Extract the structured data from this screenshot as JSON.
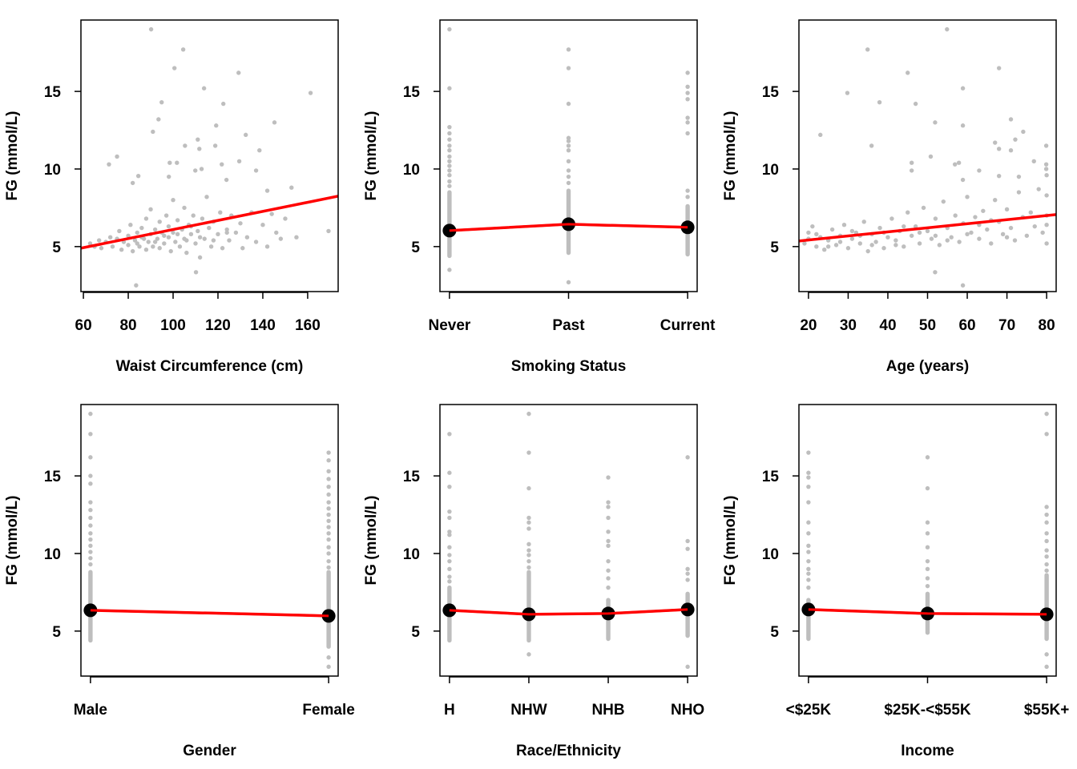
{
  "colors": {
    "points": "#bebebe",
    "fit_line": "#ff0000",
    "means": "#000000",
    "frame": "#000000"
  },
  "chart_data": [
    {
      "type": "scatter",
      "xlabel": "Waist Circumference (cm)",
      "ylabel": "FG (mmol/L)",
      "xlim": [
        58.9,
        173.6
      ],
      "ylim": [
        2.1,
        19.6
      ],
      "xticks": [
        60,
        80,
        100,
        120,
        140,
        160
      ],
      "yticks": [
        5,
        10,
        15
      ],
      "fit_line": [
        [
          58.9,
          4.9
        ],
        [
          173.6,
          8.25
        ]
      ],
      "points": [
        [
          90.2,
          19.0
        ],
        [
          104.5,
          17.7
        ],
        [
          100.6,
          16.5
        ],
        [
          129.2,
          16.2
        ],
        [
          113.8,
          15.2
        ],
        [
          161.3,
          14.9
        ],
        [
          94.9,
          14.3
        ],
        [
          122.4,
          14.2
        ],
        [
          93.5,
          13.2
        ],
        [
          145.2,
          13.0
        ],
        [
          91.0,
          12.4
        ],
        [
          119.2,
          12.8
        ],
        [
          132.4,
          12.2
        ],
        [
          111.0,
          11.9
        ],
        [
          105.3,
          11.5
        ],
        [
          118.8,
          11.5
        ],
        [
          111.7,
          11.3
        ],
        [
          138.5,
          11.2
        ],
        [
          75.0,
          10.8
        ],
        [
          71.4,
          10.3
        ],
        [
          98.5,
          10.4
        ],
        [
          101.7,
          10.4
        ],
        [
          129.5,
          10.5
        ],
        [
          121.7,
          10.3
        ],
        [
          109.9,
          9.9
        ],
        [
          112.7,
          10.0
        ],
        [
          137.0,
          9.9
        ],
        [
          84.5,
          9.55
        ],
        [
          98.1,
          9.5
        ],
        [
          123.8,
          9.3
        ],
        [
          82.0,
          9.1
        ],
        [
          152.8,
          8.8
        ],
        [
          142.0,
          8.6
        ],
        [
          169.3,
          6.0
        ],
        [
          110.2,
          3.35
        ],
        [
          83.5,
          2.5
        ],
        [
          63,
          5.2
        ],
        [
          65,
          5.0
        ],
        [
          67,
          5.4
        ],
        [
          68,
          4.9
        ],
        [
          70,
          5.3
        ],
        [
          72,
          5.6
        ],
        [
          73,
          5.0
        ],
        [
          75,
          5.5
        ],
        [
          76,
          6.0
        ],
        [
          77,
          4.8
        ],
        [
          78,
          5.3
        ],
        [
          80,
          5.7
        ],
        [
          80,
          5.1
        ],
        [
          81,
          6.4
        ],
        [
          82,
          4.7
        ],
        [
          83,
          5.4
        ],
        [
          84,
          5.9
        ],
        [
          85,
          5.0
        ],
        [
          86,
          6.2
        ],
        [
          87,
          5.5
        ],
        [
          88,
          4.8
        ],
        [
          88,
          6.8
        ],
        [
          89,
          5.3
        ],
        [
          90,
          5.8
        ],
        [
          90,
          7.4
        ],
        [
          91,
          5.0
        ],
        [
          92,
          6.1
        ],
        [
          93,
          5.5
        ],
        [
          94,
          4.9
        ],
        [
          94,
          6.6
        ],
        [
          95,
          5.9
        ],
        [
          96,
          5.2
        ],
        [
          97,
          7.0
        ],
        [
          98,
          5.6
        ],
        [
          98,
          6.3
        ],
        [
          99,
          4.7
        ],
        [
          100,
          5.9
        ],
        [
          100,
          8.0
        ],
        [
          101,
          5.3
        ],
        [
          102,
          6.7
        ],
        [
          103,
          5.0
        ],
        [
          104,
          6.1
        ],
        [
          105,
          7.5
        ],
        [
          105,
          5.5
        ],
        [
          106,
          4.6
        ],
        [
          107,
          6.4
        ],
        [
          108,
          5.8
        ],
        [
          109,
          7.0
        ],
        [
          110,
          5.2
        ],
        [
          111,
          6.0
        ],
        [
          112,
          4.3
        ],
        [
          113,
          6.8
        ],
        [
          114,
          5.5
        ],
        [
          115,
          8.2
        ],
        [
          116,
          6.2
        ],
        [
          117,
          5.0
        ],
        [
          118,
          6.6
        ],
        [
          120,
          5.8
        ],
        [
          121,
          7.2
        ],
        [
          122,
          4.9
        ],
        [
          124,
          6.1
        ],
        [
          125,
          5.4
        ],
        [
          126,
          7.0
        ],
        [
          128,
          5.9
        ],
        [
          130,
          6.5
        ],
        [
          131,
          4.9
        ],
        [
          133,
          5.6
        ],
        [
          135,
          7.2
        ],
        [
          137,
          5.3
        ],
        [
          140,
          6.4
        ],
        [
          142,
          5.0
        ],
        [
          144,
          7.1
        ],
        [
          146,
          5.9
        ],
        [
          148,
          5.5
        ],
        [
          150,
          6.8
        ],
        [
          155,
          5.6
        ],
        [
          84,
          5.2
        ],
        [
          86,
          5.6
        ],
        [
          92,
          5.3
        ],
        [
          96,
          5.7
        ],
        [
          102,
          5.8
        ],
        [
          106,
          5.4
        ],
        [
          108,
          6.3
        ],
        [
          112,
          5.6
        ],
        [
          118,
          5.4
        ],
        [
          124,
          5.9
        ]
      ]
    },
    {
      "type": "strip",
      "xlabel": "Smoking Status",
      "ylabel": "FG (mmol/L)",
      "ylim": [
        2.1,
        19.6
      ],
      "yticks": [
        5,
        10,
        15
      ],
      "categories": [
        "Never",
        "Past",
        "Current"
      ],
      "means": [
        6.03,
        6.44,
        6.24
      ],
      "dense_ranges": [
        [
          4.4,
          8.5
        ],
        [
          4.6,
          8.6
        ],
        [
          4.5,
          7.6
        ]
      ],
      "outliers": [
        [
          19.0,
          15.2,
          12.7,
          12.3,
          11.9,
          11.5,
          11.2,
          10.8,
          10.5,
          10.2,
          9.9,
          9.6,
          9.2,
          8.9,
          3.5
        ],
        [
          17.7,
          16.5,
          14.2,
          12.0,
          11.8,
          11.5,
          11.2,
          10.5,
          9.9,
          9.5,
          9.1,
          2.7
        ],
        [
          16.2,
          15.3,
          14.9,
          14.5,
          13.3,
          13.0,
          12.3,
          8.6,
          8.2
        ]
      ]
    },
    {
      "type": "scatter",
      "xlabel": "Age (years)",
      "ylabel": "FG (mmol/L)",
      "xlim": [
        17.6,
        82.4
      ],
      "ylim": [
        2.1,
        19.6
      ],
      "xticks": [
        20,
        30,
        40,
        50,
        60,
        70,
        80
      ],
      "yticks": [
        5,
        10,
        15
      ],
      "fit_line": [
        [
          17.6,
          5.36
        ],
        [
          82.4,
          7.06
        ]
      ],
      "points": [
        [
          54.9,
          19.0
        ],
        [
          34.9,
          17.7
        ],
        [
          68.0,
          16.5
        ],
        [
          45.0,
          16.2
        ],
        [
          58.9,
          15.2
        ],
        [
          29.8,
          14.9
        ],
        [
          37.9,
          14.3
        ],
        [
          47.0,
          14.2
        ],
        [
          51.9,
          13.0
        ],
        [
          58.9,
          12.8
        ],
        [
          71.0,
          13.2
        ],
        [
          74.1,
          12.4
        ],
        [
          23.0,
          12.2
        ],
        [
          72.1,
          11.9
        ],
        [
          35.9,
          11.5
        ],
        [
          67.0,
          11.7
        ],
        [
          79.9,
          11.5
        ],
        [
          68.0,
          11.3
        ],
        [
          71.0,
          11.2
        ],
        [
          50.8,
          10.8
        ],
        [
          46.0,
          10.4
        ],
        [
          46.0,
          9.9
        ],
        [
          56.9,
          10.3
        ],
        [
          57.9,
          10.4
        ],
        [
          76.8,
          10.5
        ],
        [
          79.9,
          10.3
        ],
        [
          79.9,
          10.0
        ],
        [
          63.0,
          9.9
        ],
        [
          58.9,
          9.3
        ],
        [
          68.0,
          9.55
        ],
        [
          73.0,
          9.5
        ],
        [
          51.9,
          3.35
        ],
        [
          58.9,
          2.5
        ],
        [
          19,
          5.2
        ],
        [
          20,
          5.9
        ],
        [
          21,
          6.3
        ],
        [
          22,
          5.0
        ],
        [
          23,
          5.6
        ],
        [
          24,
          4.8
        ],
        [
          25,
          5.4
        ],
        [
          26,
          6.1
        ],
        [
          27,
          5.1
        ],
        [
          28,
          5.7
        ],
        [
          29,
          6.4
        ],
        [
          30,
          4.9
        ],
        [
          31,
          5.5
        ],
        [
          32,
          5.9
        ],
        [
          33,
          5.2
        ],
        [
          34,
          6.6
        ],
        [
          35,
          4.7
        ],
        [
          36,
          5.8
        ],
        [
          37,
          5.3
        ],
        [
          38,
          6.2
        ],
        [
          39,
          4.9
        ],
        [
          40,
          5.6
        ],
        [
          41,
          6.8
        ],
        [
          42,
          5.4
        ],
        [
          43,
          6.0
        ],
        [
          44,
          5.0
        ],
        [
          45,
          7.2
        ],
        [
          46,
          5.7
        ],
        [
          47,
          6.3
        ],
        [
          48,
          5.2
        ],
        [
          49,
          7.5
        ],
        [
          50,
          6.0
        ],
        [
          51,
          5.5
        ],
        [
          52,
          6.8
        ],
        [
          53,
          5.1
        ],
        [
          54,
          7.9
        ],
        [
          55,
          6.2
        ],
        [
          56,
          5.6
        ],
        [
          57,
          7.0
        ],
        [
          58,
          5.3
        ],
        [
          59,
          6.5
        ],
        [
          60,
          8.2
        ],
        [
          61,
          5.9
        ],
        [
          62,
          6.9
        ],
        [
          63,
          5.5
        ],
        [
          64,
          7.3
        ],
        [
          65,
          6.1
        ],
        [
          66,
          5.2
        ],
        [
          67,
          8.0
        ],
        [
          68,
          6.6
        ],
        [
          69,
          5.8
        ],
        [
          70,
          7.4
        ],
        [
          71,
          6.2
        ],
        [
          72,
          5.4
        ],
        [
          73,
          8.5
        ],
        [
          74,
          6.9
        ],
        [
          75,
          5.7
        ],
        [
          76,
          7.2
        ],
        [
          77,
          6.3
        ],
        [
          78,
          8.7
        ],
        [
          79,
          5.9
        ],
        [
          80,
          7.0
        ],
        [
          80,
          6.4
        ],
        [
          80,
          5.2
        ],
        [
          80,
          8.3
        ],
        [
          80,
          9.6
        ],
        [
          20,
          5.5
        ],
        [
          22,
          5.8
        ],
        [
          25,
          5.0
        ],
        [
          28,
          5.3
        ],
        [
          31,
          6.0
        ],
        [
          33,
          5.7
        ],
        [
          36,
          5.1
        ],
        [
          39,
          5.9
        ],
        [
          42,
          5.1
        ],
        [
          44,
          6.3
        ],
        [
          48,
          5.9
        ],
        [
          52,
          5.7
        ],
        [
          55,
          5.4
        ],
        [
          60,
          5.8
        ],
        [
          63,
          6.4
        ],
        [
          66,
          6.7
        ],
        [
          70,
          5.6
        ]
      ]
    },
    {
      "type": "strip",
      "xlabel": "Gender",
      "ylabel": "FG (mmol/L)",
      "ylim": [
        2.1,
        19.6
      ],
      "yticks": [
        5,
        10,
        15
      ],
      "categories": [
        "Male",
        "Female"
      ],
      "means": [
        6.34,
        5.98
      ],
      "dense_ranges": [
        [
          4.4,
          8.8
        ],
        [
          4.0,
          8.8
        ]
      ],
      "outliers": [
        [
          19.0,
          17.7,
          16.2,
          15.0,
          14.5,
          13.3,
          12.8,
          12.3,
          11.8,
          11.3,
          10.9,
          10.5,
          10.1,
          9.7,
          9.3
        ],
        [
          16.5,
          16.0,
          15.3,
          14.8,
          14.3,
          13.8,
          13.3,
          12.9,
          12.5,
          12.1,
          11.7,
          11.3,
          10.9,
          10.4,
          10.0,
          9.5,
          9.1,
          3.3,
          2.7
        ]
      ]
    },
    {
      "type": "strip",
      "xlabel": "Race/Ethnicity",
      "ylabel": "FG (mmol/L)",
      "ylim": [
        2.1,
        19.6
      ],
      "yticks": [
        5,
        10,
        15
      ],
      "categories": [
        "H",
        "NHW",
        "NHB",
        "NHO"
      ],
      "means": [
        6.34,
        6.08,
        6.13,
        6.39
      ],
      "dense_ranges": [
        [
          4.4,
          7.8
        ],
        [
          4.4,
          8.8
        ],
        [
          4.5,
          7.0
        ],
        [
          4.7,
          7.4
        ]
      ],
      "outliers": [
        [
          17.7,
          15.2,
          14.3,
          12.7,
          12.3,
          11.4,
          11.2,
          10.4,
          9.9,
          9.5,
          9.0,
          8.5,
          8.2
        ],
        [
          19.0,
          16.5,
          14.2,
          12.3,
          12.0,
          11.6,
          10.6,
          10.2,
          9.9,
          9.5,
          9.1,
          3.5
        ],
        [
          14.9,
          13.3,
          13.0,
          12.3,
          11.4,
          10.8,
          10.5,
          9.5,
          8.9,
          8.4,
          7.8
        ],
        [
          16.2,
          10.8,
          10.3,
          9.0,
          8.7,
          8.3,
          2.7
        ]
      ]
    },
    {
      "type": "strip",
      "xlabel": "Income",
      "ylabel": "FG (mmol/L)",
      "ylim": [
        2.1,
        19.6
      ],
      "yticks": [
        5,
        10,
        15
      ],
      "categories": [
        "<$25K",
        "$25K-<$55K",
        "$55K+"
      ],
      "means": [
        6.39,
        6.13,
        6.08
      ],
      "dense_ranges": [
        [
          4.5,
          7.0
        ],
        [
          4.9,
          7.4
        ],
        [
          4.5,
          8.6
        ]
      ],
      "outliers": [
        [
          16.5,
          15.2,
          14.9,
          14.3,
          13.3,
          12.0,
          11.3,
          10.5,
          10.1,
          9.5,
          9.0,
          8.7,
          8.3,
          7.8
        ],
        [
          16.2,
          14.2,
          12.0,
          11.3,
          10.4,
          9.5,
          9.0,
          8.4,
          7.9
        ],
        [
          19.0,
          17.7,
          13.0,
          12.5,
          12.0,
          11.3,
          10.8,
          10.2,
          9.8,
          9.3,
          8.9,
          3.5,
          2.7
        ]
      ]
    }
  ]
}
